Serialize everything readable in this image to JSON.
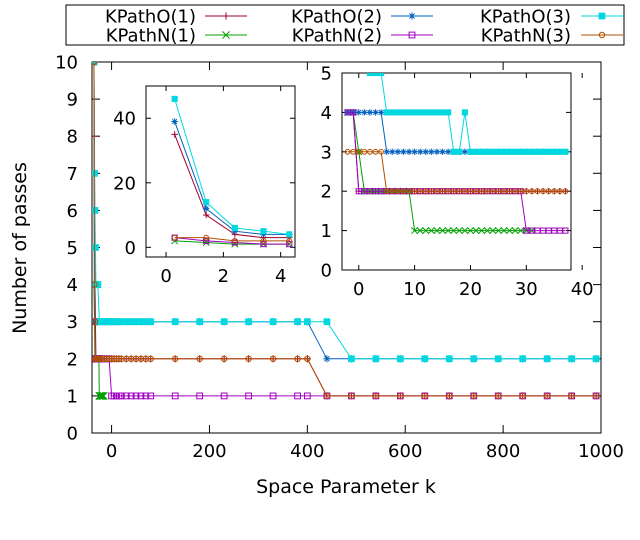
{
  "chart_data": [
    {
      "panel": "main",
      "type": "line",
      "title": "",
      "xlabel": "Space Parameter k",
      "ylabel": "Number of passes",
      "xlim": [
        -40,
        1000
      ],
      "ylim": [
        0,
        10
      ],
      "xticks": [
        0,
        200,
        400,
        600,
        800,
        1000
      ],
      "yticks": [
        0,
        1,
        2,
        3,
        4,
        5,
        6,
        7,
        8,
        9,
        10
      ],
      "legend": "top",
      "series": [
        {
          "name": "KPathO(1)",
          "color": "#a0002a",
          "marker": "plus",
          "x": [
            -36,
            -35,
            -34,
            -33,
            -32,
            -30,
            -28,
            -25,
            -20,
            -15,
            -10,
            -5,
            0,
            5,
            10,
            15,
            20,
            30,
            40,
            50,
            60,
            70,
            80,
            130,
            180,
            230,
            280,
            330,
            380,
            400,
            440,
            490,
            540,
            590,
            640,
            690,
            740,
            790,
            840,
            890,
            940,
            990
          ],
          "y": [
            10,
            8,
            4,
            3,
            2,
            2,
            2,
            2,
            2,
            2,
            2,
            2,
            2,
            2,
            2,
            2,
            2,
            2,
            2,
            2,
            2,
            2,
            2,
            2,
            2,
            2,
            2,
            2,
            2,
            2,
            1,
            1,
            1,
            1,
            1,
            1,
            1,
            1,
            1,
            1,
            1,
            1
          ]
        },
        {
          "name": "KPathN(1)",
          "color": "#00a000",
          "marker": "cross",
          "x": [
            -36,
            -35,
            -34,
            -33,
            -32,
            -30,
            -28,
            -26,
            -25,
            -24,
            -22,
            -20,
            -18,
            -16
          ],
          "y": [
            4,
            3,
            2,
            2,
            2,
            2,
            2,
            2,
            1,
            1,
            1,
            1,
            1,
            1
          ]
        },
        {
          "name": "KPathO(2)",
          "color": "#0060c0",
          "marker": "star",
          "x": [
            -36,
            -35,
            -34,
            -33,
            -32,
            -30,
            -28,
            -25,
            -20,
            -15,
            -10,
            -5,
            0,
            5,
            10,
            15,
            20,
            30,
            40,
            50,
            60,
            70,
            80,
            130,
            180,
            230,
            280,
            330,
            380,
            400,
            440,
            490,
            540,
            590,
            640,
            690,
            740,
            790,
            840,
            890,
            940,
            990
          ],
          "y": [
            10,
            4,
            4,
            3,
            3,
            3,
            3,
            3,
            3,
            3,
            3,
            3,
            3,
            3,
            3,
            3,
            3,
            3,
            3,
            3,
            3,
            3,
            3,
            3,
            3,
            3,
            3,
            3,
            3,
            3,
            2,
            2,
            2,
            2,
            2,
            2,
            2,
            2,
            2,
            2,
            2,
            2
          ]
        },
        {
          "name": "KPathN(2)",
          "color": "#a000c0",
          "marker": "open-square",
          "x": [
            -36,
            -35,
            -34,
            -33,
            -32,
            -30,
            -28,
            -25,
            -20,
            -15,
            -10,
            -5,
            0,
            5,
            10,
            15,
            20,
            30,
            40,
            50,
            60,
            70,
            80,
            130,
            180,
            230,
            280,
            330,
            380,
            400,
            440,
            490,
            540,
            590,
            640,
            690,
            740,
            790,
            840,
            890,
            940,
            990
          ],
          "y": [
            10,
            4,
            3,
            2,
            2,
            2,
            2,
            2,
            2,
            2,
            2,
            2,
            1,
            1,
            1,
            1,
            1,
            1,
            1,
            1,
            1,
            1,
            1,
            1,
            1,
            1,
            1,
            1,
            1,
            1,
            1,
            1,
            1,
            1,
            1,
            1,
            1,
            1,
            1,
            1,
            1,
            1
          ]
        },
        {
          "name": "KPathO(3)",
          "color": "#00d8e0",
          "marker": "filled-square",
          "x": [
            -36,
            -35,
            -34,
            -33,
            -32,
            -30,
            -28,
            -25,
            -20,
            -15,
            -10,
            -5,
            0,
            5,
            10,
            15,
            20,
            30,
            40,
            50,
            60,
            70,
            80,
            130,
            180,
            230,
            280,
            330,
            380,
            400,
            440,
            490,
            540,
            590,
            640,
            690,
            740,
            790,
            840,
            890,
            940,
            990
          ],
          "y": [
            10,
            7,
            6,
            5,
            4,
            4,
            4,
            3,
            3,
            3,
            3,
            3,
            3,
            3,
            3,
            3,
            3,
            3,
            3,
            3,
            3,
            3,
            3,
            3,
            3,
            3,
            3,
            3,
            3,
            3,
            3,
            2,
            2,
            2,
            2,
            2,
            2,
            2,
            2,
            2,
            2,
            2
          ]
        },
        {
          "name": "KPathN(3)",
          "color": "#b05000",
          "marker": "open-circle",
          "x": [
            -36,
            -35,
            -34,
            -33,
            -32,
            -30,
            -28,
            -25,
            -20,
            -15,
            -10,
            -5,
            0,
            5,
            10,
            15,
            20,
            30,
            40,
            50,
            60,
            70,
            80,
            130,
            180,
            230,
            280,
            330,
            380,
            400,
            440,
            490,
            540,
            590,
            640,
            690,
            740,
            790,
            840,
            890,
            940,
            990
          ],
          "y": [
            10,
            4,
            3,
            2,
            2,
            2,
            2,
            2,
            2,
            2,
            2,
            2,
            2,
            2,
            2,
            2,
            2,
            2,
            2,
            2,
            2,
            2,
            2,
            2,
            2,
            2,
            2,
            2,
            2,
            2,
            1,
            1,
            1,
            1,
            1,
            1,
            1,
            1,
            1,
            1,
            1,
            1
          ]
        }
      ]
    },
    {
      "panel": "inset-left",
      "type": "line",
      "xlim": [
        -0.7,
        4.5
      ],
      "ylim": [
        -3,
        50
      ],
      "xticks": [
        0,
        2,
        4
      ],
      "yticks": [
        0,
        20,
        40
      ],
      "series": [
        {
          "name": "KPathO(1)",
          "x": [
            0.3,
            1.4,
            2.4,
            3.4,
            4.3
          ],
          "y": [
            35,
            10,
            4,
            3,
            3
          ]
        },
        {
          "name": "KPathN(1)",
          "x": [
            0.3,
            1.4,
            2.4,
            3.4,
            4.3
          ],
          "y": [
            2,
            1.5,
            1,
            1,
            1
          ]
        },
        {
          "name": "KPathO(2)",
          "x": [
            0.3,
            1.4,
            2.4,
            3.4,
            4.3
          ],
          "y": [
            39,
            12,
            5,
            4,
            4
          ]
        },
        {
          "name": "KPathN(2)",
          "x": [
            0.3,
            1.4,
            2.4,
            3.4,
            4.3
          ],
          "y": [
            3,
            2,
            1.5,
            1,
            1
          ]
        },
        {
          "name": "KPathO(3)",
          "x": [
            0.3,
            1.4,
            2.4,
            3.4,
            4.3
          ],
          "y": [
            46,
            14,
            6,
            5,
            4
          ]
        },
        {
          "name": "KPathN(3)",
          "x": [
            0.3,
            1.4,
            2.4,
            3.4,
            4.3
          ],
          "y": [
            3,
            3,
            2,
            2,
            2
          ]
        }
      ]
    },
    {
      "panel": "inset-right",
      "type": "line",
      "xlim": [
        -3,
        38
      ],
      "ylim": [
        0,
        5
      ],
      "xticks": [
        0,
        10,
        20,
        30,
        40
      ],
      "yticks": [
        0,
        1,
        2,
        3,
        4,
        5
      ],
      "series": [
        {
          "name": "KPathO(1)",
          "x": [
            -2,
            -1,
            0,
            1,
            2,
            3,
            4,
            5,
            6,
            7,
            8,
            9,
            10,
            11,
            12,
            13,
            14,
            15,
            16,
            17,
            18,
            19,
            20,
            21,
            22,
            23,
            24,
            25,
            26,
            27,
            28,
            29,
            30,
            31,
            32,
            33,
            34,
            35,
            36,
            37
          ],
          "y": [
            4,
            4,
            2,
            2,
            2,
            2,
            2,
            2,
            2,
            2,
            2,
            2,
            2,
            2,
            2,
            2,
            2,
            2,
            2,
            2,
            2,
            2,
            2,
            2,
            2,
            2,
            2,
            2,
            2,
            2,
            2,
            2,
            2,
            2,
            2,
            2,
            2,
            2,
            2,
            2
          ]
        },
        {
          "name": "KPathN(1)",
          "x": [
            -2,
            -1,
            0,
            1,
            2,
            3,
            4,
            5,
            6,
            7,
            8,
            9,
            10,
            11,
            12,
            13,
            14,
            15,
            16,
            17,
            18,
            19,
            20,
            21,
            22,
            23,
            24,
            25,
            26,
            27,
            28,
            29,
            30,
            31
          ],
          "y": [
            4,
            4,
            3,
            2,
            2,
            2,
            2,
            2,
            2,
            2,
            2,
            2,
            1,
            1,
            1,
            1,
            1,
            1,
            1,
            1,
            1,
            1,
            1,
            1,
            1,
            1,
            1,
            1,
            1,
            1,
            1,
            1,
            1,
            1
          ]
        },
        {
          "name": "KPathO(2)",
          "x": [
            -2,
            -1,
            0,
            1,
            2,
            3,
            4,
            5,
            6,
            7,
            8,
            9,
            10,
            11,
            12,
            13,
            14,
            15,
            16,
            17,
            18,
            19,
            20,
            21,
            22,
            23,
            24,
            25,
            26,
            27,
            28,
            29,
            30,
            31,
            32,
            33,
            34,
            35,
            36,
            37
          ],
          "y": [
            4,
            4,
            4,
            4,
            4,
            4,
            4,
            3,
            3,
            3,
            3,
            3,
            3,
            3,
            3,
            3,
            3,
            3,
            3,
            3,
            3,
            3,
            3,
            3,
            3,
            3,
            3,
            3,
            3,
            3,
            3,
            3,
            3,
            3,
            3,
            3,
            3,
            3,
            3,
            3
          ]
        },
        {
          "name": "KPathN(2)",
          "x": [
            -2,
            -1,
            0,
            1,
            2,
            3,
            4,
            5,
            6,
            7,
            8,
            9,
            10,
            11,
            12,
            13,
            14,
            15,
            16,
            17,
            18,
            19,
            20,
            21,
            22,
            23,
            24,
            25,
            26,
            27,
            28,
            29,
            30,
            31,
            32,
            33,
            34,
            35,
            36,
            37
          ],
          "y": [
            4,
            4,
            2,
            2,
            2,
            2,
            2,
            2,
            2,
            2,
            2,
            2,
            2,
            2,
            2,
            2,
            2,
            2,
            2,
            2,
            2,
            2,
            2,
            2,
            2,
            2,
            2,
            2,
            2,
            2,
            2,
            2,
            1,
            1,
            1,
            1,
            1,
            1,
            1,
            1
          ]
        },
        {
          "name": "KPathO(3)",
          "x": [
            2,
            3,
            4,
            5,
            6,
            7,
            8,
            9,
            10,
            11,
            12,
            13,
            14,
            15,
            16,
            17,
            18,
            19,
            20,
            21,
            22,
            23,
            24,
            25,
            26,
            27,
            28,
            29,
            30,
            31,
            32,
            33,
            34,
            35,
            36,
            37
          ],
          "y": [
            5,
            5,
            5,
            4,
            4,
            4,
            4,
            4,
            4,
            4,
            4,
            4,
            4,
            4,
            4,
            3,
            3,
            4,
            3,
            3,
            3,
            3,
            3,
            3,
            3,
            3,
            3,
            3,
            3,
            3,
            3,
            3,
            3,
            3,
            3,
            3
          ]
        },
        {
          "name": "KPathN(3)",
          "x": [
            -2,
            -1,
            0,
            1,
            2,
            3,
            4,
            5,
            6,
            7,
            8,
            9,
            10,
            11,
            12,
            13,
            14,
            15,
            16,
            17,
            18,
            19,
            20,
            21,
            22,
            23,
            24,
            25,
            26,
            27,
            28,
            29,
            30,
            31,
            32,
            33,
            34,
            35,
            36,
            37
          ],
          "y": [
            3,
            3,
            3,
            3,
            3,
            3,
            3,
            2,
            2,
            2,
            2,
            2,
            2,
            2,
            2,
            2,
            2,
            2,
            2,
            2,
            2,
            2,
            2,
            2,
            2,
            2,
            2,
            2,
            2,
            2,
            2,
            2,
            2,
            2,
            2,
            2,
            2,
            2,
            2,
            2
          ]
        }
      ]
    }
  ]
}
